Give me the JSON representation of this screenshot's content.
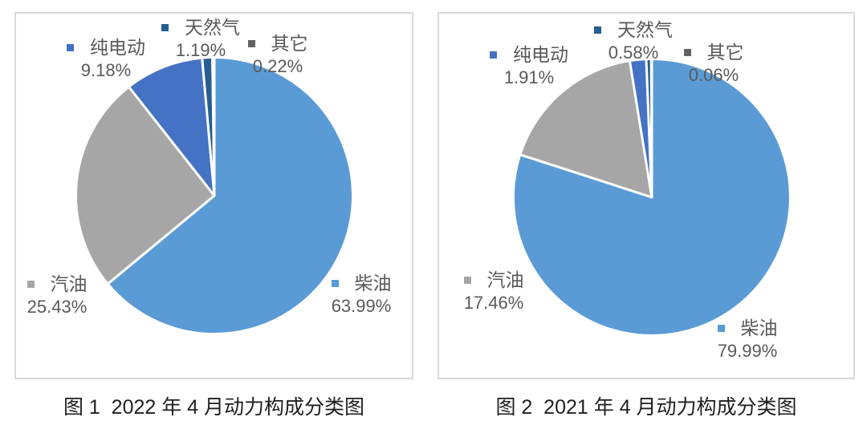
{
  "chart_data": [
    {
      "type": "pie",
      "title": "图 1  2022 年 4 月动力构成分类图",
      "start_angle_deg": 0,
      "direction": "clockwise",
      "legend_position": "around-pie",
      "slices": [
        {
          "label": "柴油",
          "value": 63.99,
          "display": "63.99%",
          "color": "#5B9BD5"
        },
        {
          "label": "汽油",
          "value": 25.43,
          "display": "25.43%",
          "color": "#A6A6A6"
        },
        {
          "label": "纯电动",
          "value": 9.18,
          "display": "9.18%",
          "color": "#4472C4"
        },
        {
          "label": "天然气",
          "value": 1.19,
          "display": "1.19%",
          "color": "#255E91"
        },
        {
          "label": "其它",
          "value": 0.22,
          "display": "0.22%",
          "color": "#636363"
        }
      ]
    },
    {
      "type": "pie",
      "title": "图 2  2021 年 4 月动力构成分类图",
      "start_angle_deg": 0,
      "direction": "clockwise",
      "legend_position": "around-pie",
      "slices": [
        {
          "label": "柴油",
          "value": 79.99,
          "display": "79.99%",
          "color": "#5B9BD5"
        },
        {
          "label": "汽油",
          "value": 17.46,
          "display": "17.46%",
          "color": "#A6A6A6"
        },
        {
          "label": "纯电动",
          "value": 1.91,
          "display": "1.91%",
          "color": "#4472C4"
        },
        {
          "label": "天然气",
          "value": 0.58,
          "display": "0.58%",
          "color": "#255E91"
        },
        {
          "label": "其它",
          "value": 0.06,
          "display": "0.06%",
          "color": "#636363"
        }
      ]
    }
  ],
  "styles": {
    "separator_color": "#ffffff",
    "label_text_color": "#595959",
    "caption_text_color": "#1f1f1f",
    "panel_border_color": "#d9d9d9"
  }
}
